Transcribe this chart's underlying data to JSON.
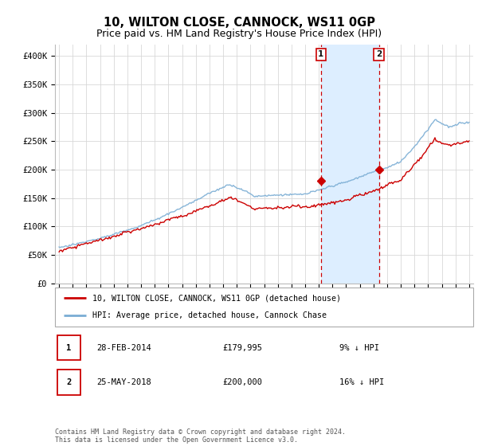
{
  "title": "10, WILTON CLOSE, CANNOCK, WS11 0GP",
  "subtitle": "Price paid vs. HM Land Registry's House Price Index (HPI)",
  "title_fontsize": 10.5,
  "subtitle_fontsize": 9,
  "ylim": [
    0,
    420000
  ],
  "yticks": [
    0,
    50000,
    100000,
    150000,
    200000,
    250000,
    300000,
    350000,
    400000
  ],
  "ytick_labels": [
    "£0",
    "£50K",
    "£100K",
    "£150K",
    "£200K",
    "£250K",
    "£300K",
    "£350K",
    "£400K"
  ],
  "background_color": "#ffffff",
  "plot_bg_color": "#ffffff",
  "grid_color": "#d8d8d8",
  "hpi_color": "#7aadd4",
  "price_color": "#cc0000",
  "shade_color": "#ddeeff",
  "purchase1_year": 2014.16,
  "purchase1_price": 179995,
  "purchase1_label": "28-FEB-2014",
  "purchase1_amount": "£179,995",
  "purchase1_pct": "9% ↓ HPI",
  "purchase2_year": 2018.4,
  "purchase2_price": 200000,
  "purchase2_label": "25-MAY-2018",
  "purchase2_amount": "£200,000",
  "purchase2_pct": "16% ↓ HPI",
  "legend_line1": "10, WILTON CLOSE, CANNOCK, WS11 0GP (detached house)",
  "legend_line2": "HPI: Average price, detached house, Cannock Chase",
  "footnote": "Contains HM Land Registry data © Crown copyright and database right 2024.\nThis data is licensed under the Open Government Licence v3.0.",
  "xstart": 1995,
  "xend": 2025
}
